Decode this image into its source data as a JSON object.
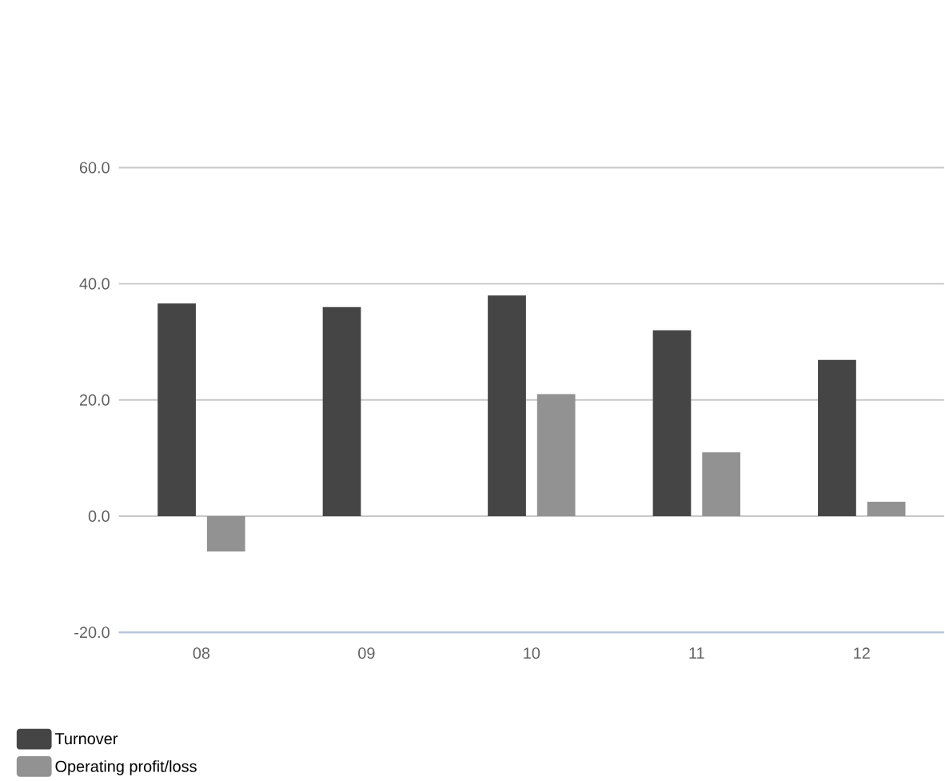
{
  "chart_data": {
    "type": "bar",
    "categories": [
      "08",
      "09",
      "10",
      "11",
      "12"
    ],
    "series": [
      {
        "name": "Turnover",
        "color": "#464545",
        "values": [
          36.6,
          36.0,
          38.0,
          32.0,
          26.9
        ]
      },
      {
        "name": "Operating profit/loss",
        "color": "#929292",
        "values": [
          -6.1,
          null,
          21.0,
          11.0,
          2.5
        ]
      }
    ],
    "ylim": [
      -20,
      60
    ],
    "yticks": [
      {
        "value": -20,
        "label": "-20.0"
      },
      {
        "value": 0,
        "label": "0.0"
      },
      {
        "value": 20,
        "label": "20.0"
      },
      {
        "value": 40,
        "label": "40.0"
      },
      {
        "value": 60,
        "label": "60.0"
      }
    ],
    "grid": "y",
    "legend": "bottom left"
  }
}
